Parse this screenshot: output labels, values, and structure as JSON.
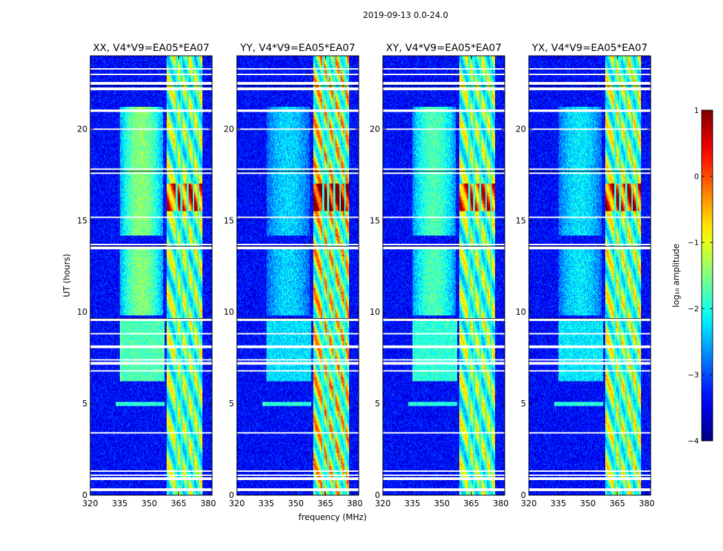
{
  "figure_title": "2019-09-13 0.0-24.0",
  "chart_data": [
    {
      "type": "heatmap",
      "title": "XX, V4*V9=EA05*EA07",
      "xlabel": "",
      "ylabel": "UT (hours)",
      "xlim": [
        320,
        382
      ],
      "ylim": [
        0,
        24
      ],
      "xticks": [
        320,
        335,
        350,
        365,
        380
      ],
      "yticks": [
        0,
        5,
        10,
        15,
        20
      ],
      "xtick_labels": [
        "320",
        "335",
        "350",
        "365",
        "380"
      ],
      "ytick_labels": [
        "0",
        "5",
        "10",
        "15",
        "20"
      ],
      "blob_strength": 1.0,
      "rfi_strength": 1.0
    },
    {
      "type": "heatmap",
      "title": "YY, V4*V9=EA05*EA07",
      "xlabel": "frequency (MHz)",
      "ylabel": "",
      "xlim": [
        320,
        382
      ],
      "ylim": [
        0,
        24
      ],
      "xticks": [
        320,
        335,
        350,
        365,
        380
      ],
      "yticks": [
        0,
        5,
        10,
        15,
        20
      ],
      "xtick_labels": [
        "320",
        "335",
        "350",
        "365",
        "380"
      ],
      "ytick_labels": [
        "0",
        "5",
        "10",
        "15",
        "20"
      ],
      "blob_strength": 0.55,
      "rfi_strength": 1.25
    },
    {
      "type": "heatmap",
      "title": "XY, V4*V9=EA05*EA07",
      "xlabel": "",
      "ylabel": "",
      "xlim": [
        320,
        382
      ],
      "ylim": [
        0,
        24
      ],
      "xticks": [
        320,
        335,
        350,
        365,
        380
      ],
      "yticks": [
        0,
        5,
        10,
        15,
        20
      ],
      "xtick_labels": [
        "320",
        "335",
        "350",
        "365",
        "380"
      ],
      "ytick_labels": [
        "0",
        "5",
        "10",
        "15",
        "20"
      ],
      "blob_strength": 0.85,
      "rfi_strength": 1.0
    },
    {
      "type": "heatmap",
      "title": "YX, V4*V9=EA05*EA07",
      "xlabel": "",
      "ylabel": "",
      "xlim": [
        320,
        382
      ],
      "ylim": [
        0,
        24
      ],
      "xticks": [
        320,
        335,
        350,
        365,
        380
      ],
      "yticks": [
        0,
        5,
        10,
        15,
        20
      ],
      "xtick_labels": [
        "320",
        "335",
        "350",
        "365",
        "380"
      ],
      "ytick_labels": [
        "0",
        "5",
        "10",
        "15",
        "20"
      ],
      "blob_strength": 0.6,
      "rfi_strength": 1.05
    }
  ],
  "colorbar": {
    "label": "log₁₀ amplitude",
    "range": [
      -4,
      1
    ],
    "ticks": [
      1,
      0,
      -1,
      -2,
      -3,
      -4
    ],
    "tick_labels": [
      "1",
      "0",
      "−1",
      "−2",
      "−3",
      "−4"
    ],
    "colormap": "jet"
  },
  "data_features": {
    "rfi_band_mhz": [
      359,
      377
    ],
    "rfi_channel_gaps_mhz": [
      364,
      366.5,
      369.5,
      372.5,
      375
    ],
    "broadband_blob_mhz": [
      335,
      357
    ],
    "blob_hours": [
      [
        14.2,
        17.2
      ],
      [
        17.2,
        21.2
      ],
      [
        9.8,
        12.5
      ],
      [
        12.5,
        13.5
      ]
    ],
    "strong_rfi_hours": [
      [
        15.5,
        17.0
      ]
    ],
    "flagged_hours": [
      0.3,
      0.9,
      1.1,
      1.3,
      3.4,
      6.8,
      7.2,
      7.4,
      8.1,
      8.8,
      9.6,
      13.5,
      13.7,
      15.2,
      17.6,
      17.8,
      20.0,
      21.0,
      22.2,
      22.5,
      23.0,
      23.3
    ]
  }
}
